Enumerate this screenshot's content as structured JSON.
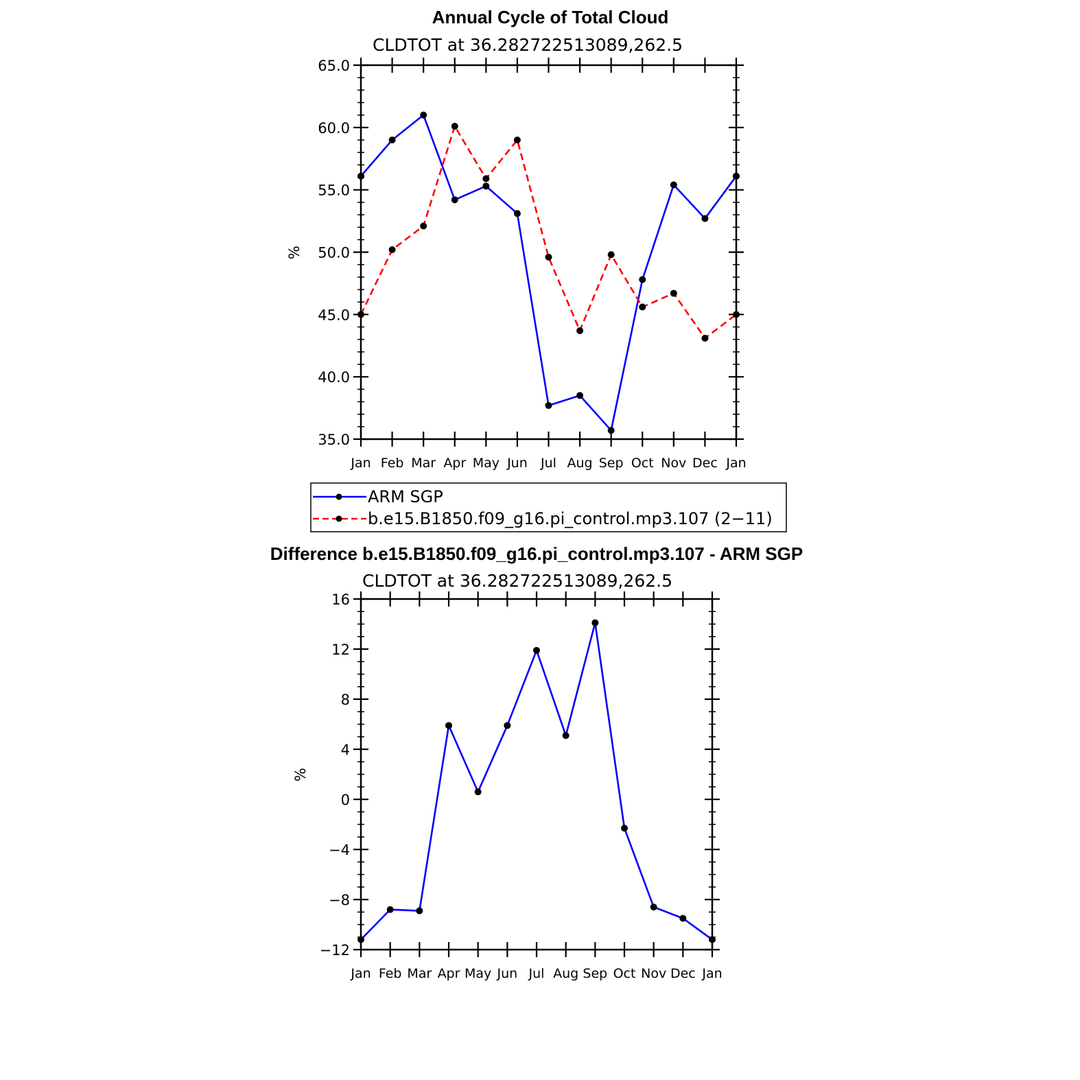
{
  "chart_data": [
    {
      "type": "line",
      "title": "Annual Cycle of Total Cloud",
      "subtitle": "CLDTOT at 36.282722513089,262.5",
      "ylabel": "%",
      "ylim": [
        35,
        65
      ],
      "yticks": [
        "65.0",
        "60.0",
        "55.0",
        "50.0",
        "45.0",
        "40.0",
        "35.0"
      ],
      "categories": [
        "Jan",
        "Feb",
        "Mar",
        "Apr",
        "May",
        "Jun",
        "Jul",
        "Aug",
        "Sep",
        "Oct",
        "Nov",
        "Dec",
        "Jan"
      ],
      "series": [
        {
          "name": "ARM SGP",
          "color": "#0000ff",
          "dash": "solid",
          "values": [
            56.1,
            59.0,
            61.0,
            54.2,
            55.3,
            53.1,
            37.7,
            38.5,
            35.7,
            47.8,
            55.4,
            52.7,
            56.1
          ]
        },
        {
          "name": "b.e15.B1850.f09_g16.pi_control.mp3.107 (2−11)",
          "color": "#ff0000",
          "dash": "dashed",
          "values": [
            45.0,
            50.2,
            52.1,
            60.1,
            55.9,
            59.0,
            49.6,
            43.7,
            49.8,
            45.6,
            46.7,
            43.1,
            45.0
          ]
        }
      ],
      "legend": "below"
    },
    {
      "type": "line",
      "title": "Difference b.e15.B1850.f09_g16.pi_control.mp3.107 - ARM SGP",
      "subtitle": "CLDTOT at 36.282722513089,262.5",
      "ylabel": "%",
      "ylim": [
        -12,
        16
      ],
      "yticks": [
        "16",
        "12",
        "8",
        "4",
        "0",
        "−4",
        "−8",
        "−12"
      ],
      "categories": [
        "Jan",
        "Feb",
        "Mar",
        "Apr",
        "May",
        "Jun",
        "Jul",
        "Aug",
        "Sep",
        "Oct",
        "Nov",
        "Dec",
        "Jan"
      ],
      "series": [
        {
          "color": "#0000ff",
          "dash": "solid",
          "values": [
            -11.2,
            -8.8,
            -8.9,
            5.9,
            0.6,
            5.9,
            11.9,
            5.1,
            14.1,
            -2.3,
            -8.6,
            -9.5,
            -11.2
          ]
        }
      ]
    }
  ]
}
